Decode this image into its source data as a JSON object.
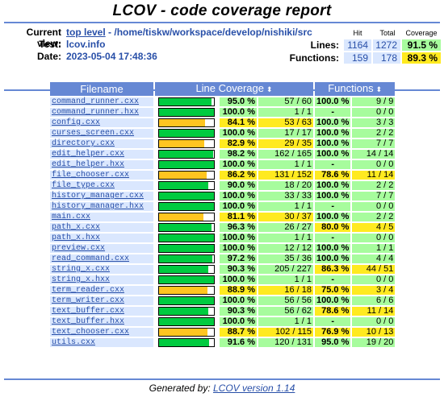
{
  "title": "LCOV - code coverage report",
  "header": {
    "current_view_label": "Current view:",
    "top_level": "top level",
    "path": "- /home/tiskw/workspace/develop/nishiki/src",
    "test_label": "Test:",
    "test_value": "lcov.info",
    "date_label": "Date:",
    "date_value": "2023-05-04 17:48:36",
    "col_hit": "Hit",
    "col_total": "Total",
    "col_coverage": "Coverage",
    "lines_label": "Lines:",
    "lines_hit": "1164",
    "lines_total": "1272",
    "lines_cov": "91.5 %",
    "functions_label": "Functions:",
    "functions_hit": "159",
    "functions_total": "178",
    "functions_cov": "89.3 %"
  },
  "table": {
    "col_filename": "Filename",
    "col_line": "Line Coverage",
    "col_func": "Functions",
    "sort_icon": "⬍",
    "rows": [
      {
        "file": "command_runner.cxx",
        "lpct": "95.0 %",
        "lcnt": "57 / 60",
        "lv": 95.0,
        "lc": "hi",
        "fpct": "100.0 %",
        "fcnt": "9 / 9",
        "fc": "hi"
      },
      {
        "file": "command_runner.hxx",
        "lpct": "100.0 %",
        "lcnt": "1 / 1",
        "lv": 100.0,
        "lc": "hi",
        "fpct": "-",
        "fcnt": "0 / 0",
        "fc": "hi"
      },
      {
        "file": "config.cxx",
        "lpct": "84.1 %",
        "lcnt": "53 / 63",
        "lv": 84.1,
        "lc": "med",
        "fpct": "100.0 %",
        "fcnt": "3 / 3",
        "fc": "hi"
      },
      {
        "file": "curses_screen.cxx",
        "lpct": "100.0 %",
        "lcnt": "17 / 17",
        "lv": 100.0,
        "lc": "hi",
        "fpct": "100.0 %",
        "fcnt": "2 / 2",
        "fc": "hi"
      },
      {
        "file": "directory.cxx",
        "lpct": "82.9 %",
        "lcnt": "29 / 35",
        "lv": 82.9,
        "lc": "med",
        "fpct": "100.0 %",
        "fcnt": "7 / 7",
        "fc": "hi"
      },
      {
        "file": "edit_helper.cxx",
        "lpct": "98.2 %",
        "lcnt": "162 / 165",
        "lv": 98.2,
        "lc": "hi",
        "fpct": "100.0 %",
        "fcnt": "14 / 14",
        "fc": "hi"
      },
      {
        "file": "edit_helper.hxx",
        "lpct": "100.0 %",
        "lcnt": "1 / 1",
        "lv": 100.0,
        "lc": "hi",
        "fpct": "-",
        "fcnt": "0 / 0",
        "fc": "hi"
      },
      {
        "file": "file_chooser.cxx",
        "lpct": "86.2 %",
        "lcnt": "131 / 152",
        "lv": 86.2,
        "lc": "med",
        "fpct": "78.6 %",
        "fcnt": "11 / 14",
        "fc": "med"
      },
      {
        "file": "file_type.cxx",
        "lpct": "90.0 %",
        "lcnt": "18 / 20",
        "lv": 90.0,
        "lc": "hi",
        "fpct": "100.0 %",
        "fcnt": "2 / 2",
        "fc": "hi"
      },
      {
        "file": "history_manager.cxx",
        "lpct": "100.0 %",
        "lcnt": "33 / 33",
        "lv": 100.0,
        "lc": "hi",
        "fpct": "100.0 %",
        "fcnt": "7 / 7",
        "fc": "hi"
      },
      {
        "file": "history_manager.hxx",
        "lpct": "100.0 %",
        "lcnt": "1 / 1",
        "lv": 100.0,
        "lc": "hi",
        "fpct": "-",
        "fcnt": "0 / 0",
        "fc": "hi"
      },
      {
        "file": "main.cxx",
        "lpct": "81.1 %",
        "lcnt": "30 / 37",
        "lv": 81.1,
        "lc": "med",
        "fpct": "100.0 %",
        "fcnt": "2 / 2",
        "fc": "hi"
      },
      {
        "file": "path_x.cxx",
        "lpct": "96.3 %",
        "lcnt": "26 / 27",
        "lv": 96.3,
        "lc": "hi",
        "fpct": "80.0 %",
        "fcnt": "4 / 5",
        "fc": "med"
      },
      {
        "file": "path_x.hxx",
        "lpct": "100.0 %",
        "lcnt": "1 / 1",
        "lv": 100.0,
        "lc": "hi",
        "fpct": "-",
        "fcnt": "0 / 0",
        "fc": "hi"
      },
      {
        "file": "preview.cxx",
        "lpct": "100.0 %",
        "lcnt": "12 / 12",
        "lv": 100.0,
        "lc": "hi",
        "fpct": "100.0 %",
        "fcnt": "1 / 1",
        "fc": "hi"
      },
      {
        "file": "read_command.cxx",
        "lpct": "97.2 %",
        "lcnt": "35 / 36",
        "lv": 97.2,
        "lc": "hi",
        "fpct": "100.0 %",
        "fcnt": "4 / 4",
        "fc": "hi"
      },
      {
        "file": "string_x.cxx",
        "lpct": "90.3 %",
        "lcnt": "205 / 227",
        "lv": 90.3,
        "lc": "hi",
        "fpct": "86.3 %",
        "fcnt": "44 / 51",
        "fc": "med"
      },
      {
        "file": "string_x.hxx",
        "lpct": "100.0 %",
        "lcnt": "1 / 1",
        "lv": 100.0,
        "lc": "hi",
        "fpct": "-",
        "fcnt": "0 / 0",
        "fc": "hi"
      },
      {
        "file": "term_reader.cxx",
        "lpct": "88.9 %",
        "lcnt": "16 / 18",
        "lv": 88.9,
        "lc": "med",
        "fpct": "75.0 %",
        "fcnt": "3 / 4",
        "fc": "med"
      },
      {
        "file": "term_writer.cxx",
        "lpct": "100.0 %",
        "lcnt": "56 / 56",
        "lv": 100.0,
        "lc": "hi",
        "fpct": "100.0 %",
        "fcnt": "6 / 6",
        "fc": "hi"
      },
      {
        "file": "text_buffer.cxx",
        "lpct": "90.3 %",
        "lcnt": "56 / 62",
        "lv": 90.3,
        "lc": "hi",
        "fpct": "78.6 %",
        "fcnt": "11 / 14",
        "fc": "med"
      },
      {
        "file": "text_buffer.hxx",
        "lpct": "100.0 %",
        "lcnt": "1 / 1",
        "lv": 100.0,
        "lc": "hi",
        "fpct": "-",
        "fcnt": "0 / 0",
        "fc": "hi"
      },
      {
        "file": "text_chooser.cxx",
        "lpct": "88.7 %",
        "lcnt": "102 / 115",
        "lv": 88.7,
        "lc": "med",
        "fpct": "76.9 %",
        "fcnt": "10 / 13",
        "fc": "med"
      },
      {
        "file": "utils.cxx",
        "lpct": "91.6 %",
        "lcnt": "120 / 131",
        "lv": 91.6,
        "lc": "hi",
        "fpct": "95.0 %",
        "fcnt": "19 / 20",
        "fc": "hi"
      }
    ]
  },
  "colors": {
    "hi": "#a7fc9d",
    "med": "#ffea20",
    "bar_hi": "#00cb40",
    "bar_med": "#ffc520",
    "accent": "#6688d4",
    "link": "#284fa8"
  },
  "footer": {
    "prefix": "Generated by: ",
    "link": "LCOV version 1.14"
  }
}
